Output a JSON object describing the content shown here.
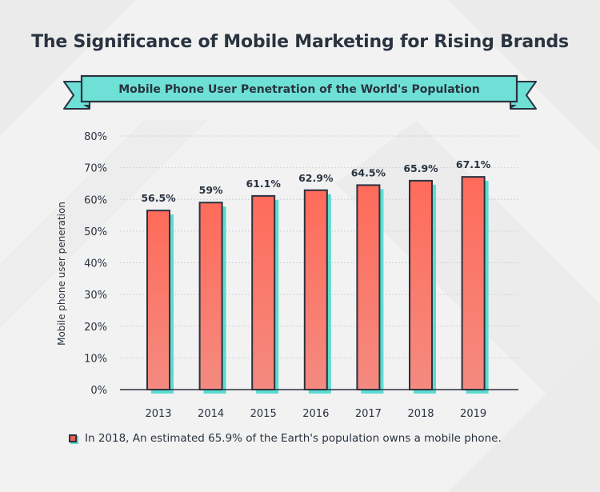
{
  "title": "The Significance of Mobile Marketing for Rising Brands",
  "subtitle": "Mobile Phone User Penetration of the World's Population",
  "footnote": "In 2018,  An estimated 65.9% of the Earth's population owns a mobile phone.",
  "colors": {
    "bar_top": "#ff6b5a",
    "bar_bottom": "#f48a80",
    "bar_outline": "#2a3340",
    "shadow": "#5cdcd0",
    "ribbon": "#6ee0d6",
    "background": "#f2f2f2"
  },
  "chart_data": {
    "type": "bar",
    "categories": [
      "2013",
      "2014",
      "2015",
      "2016",
      "2017",
      "2018",
      "2019"
    ],
    "values": [
      56.5,
      59,
      61.1,
      62.9,
      64.5,
      65.9,
      67.1
    ],
    "value_labels": [
      "56.5%",
      "59%",
      "61.1%",
      "62.9%",
      "64.5%",
      "65.9%",
      "67.1%"
    ],
    "ylabel": "Mobile phone user peneration",
    "xlabel": "",
    "ylim": [
      0,
      80
    ],
    "yticks": [
      "0%",
      "10%",
      "20%",
      "30%",
      "40%",
      "50%",
      "60%",
      "70%",
      "80%"
    ],
    "grid": true
  }
}
